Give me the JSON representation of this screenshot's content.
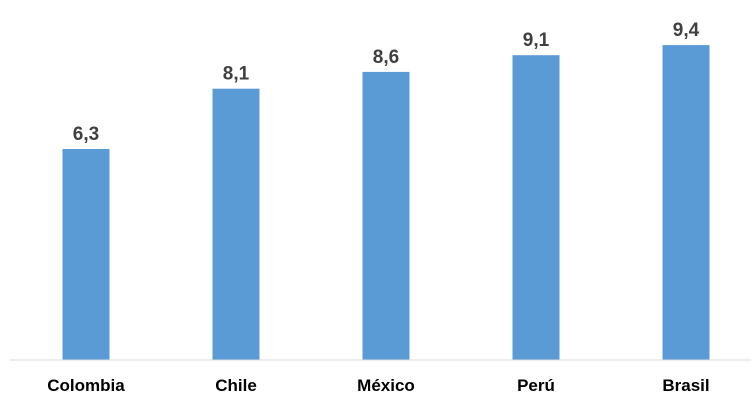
{
  "chart_data": {
    "type": "bar",
    "categories": [
      "Colombia",
      "Chile",
      "México",
      "Perú",
      "Brasil"
    ],
    "values": [
      6.3,
      8.1,
      8.6,
      9.1,
      9.4
    ],
    "value_labels": [
      "6,3",
      "8,1",
      "8,6",
      "9,1",
      "9,4"
    ],
    "title": "",
    "xlabel": "",
    "ylabel": "",
    "ylim": [
      0,
      10
    ],
    "grid": false,
    "legend": "none",
    "colors": {
      "bar": "#5B9BD5",
      "axis": "#D9D9D9",
      "value_label": "#404040",
      "category_label": "#000000"
    }
  }
}
